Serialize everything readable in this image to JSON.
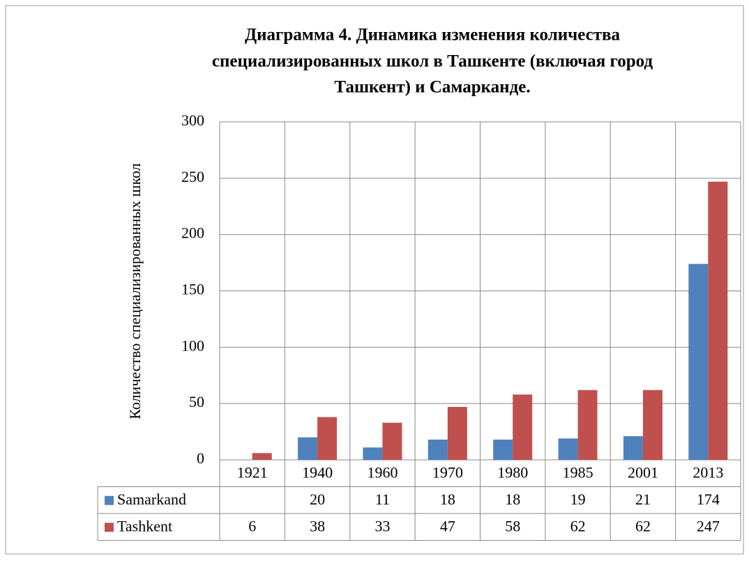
{
  "chart_data": {
    "type": "bar",
    "title": [
      "Диаграмма 4. Динамика изменения количества",
      "специализированных школ в Ташкенте (включая город",
      "Ташкент) и Самарканде."
    ],
    "y_label": "Количество специализированных школ",
    "categories": [
      "1921",
      "1940",
      "1960",
      "1970",
      "1980",
      "1985",
      "2001",
      "2013"
    ],
    "series": [
      {
        "name": "Samarkand",
        "color": "#4f81bd",
        "values": [
          null,
          20,
          11,
          18,
          18,
          19,
          21,
          174
        ]
      },
      {
        "name": "Tashkent",
        "color": "#c0504d",
        "values": [
          6,
          38,
          33,
          47,
          58,
          62,
          62,
          247
        ]
      }
    ],
    "ylim": [
      0,
      300
    ],
    "yticks": [
      0,
      50,
      100,
      150,
      200,
      250,
      300
    ],
    "grid": true,
    "data_table": true
  }
}
